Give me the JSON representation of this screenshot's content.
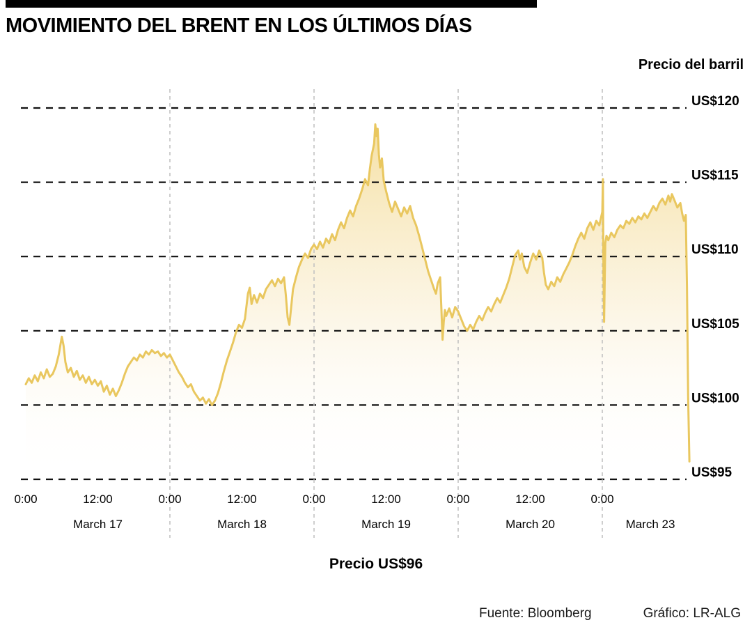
{
  "header": {
    "title": "MOVIMIENTO DEL BRENT EN LOS ÚLTIMOS DÍAS"
  },
  "footer": {
    "price_label": "Precio US$96",
    "source": "Fuente: Bloomberg",
    "credit": "Gráfico: LR-ALG"
  },
  "chart_data": {
    "type": "area",
    "title": "MOVIMIENTO DEL BRENT EN LOS ÚLTIMOS DÍAS",
    "ylabel": "Precio del barril",
    "xlabel": "",
    "unit": "US$",
    "ylim": [
      95,
      120
    ],
    "grid": "dashed",
    "line_color": "#E9C75F",
    "fill_top_color": "#F5DFA0",
    "fill_mid_color": "#FAF0D6",
    "fill_bottom_color": "#FFFFFF",
    "h_grid_color": "#111111",
    "v_grid_color": "#C2C2C2",
    "y_ticks": [
      {
        "label": "US$120",
        "value": 120
      },
      {
        "label": "US$115",
        "value": 115
      },
      {
        "label": "US$110",
        "value": 110
      },
      {
        "label": "US$105",
        "value": 105
      },
      {
        "label": "US$100",
        "value": 100
      },
      {
        "label": "US$95",
        "value": 95
      }
    ],
    "x_ticks": [
      {
        "label": "0:00",
        "hour": 0
      },
      {
        "label": "12:00",
        "hour": 12
      },
      {
        "label": "0:00",
        "hour": 24
      },
      {
        "label": "12:00",
        "hour": 36
      },
      {
        "label": "0:00",
        "hour": 48
      },
      {
        "label": "12:00",
        "hour": 60
      },
      {
        "label": "0:00",
        "hour": 72
      },
      {
        "label": "12:00",
        "hour": 84
      },
      {
        "label": "0:00",
        "hour": 96
      }
    ],
    "vgrid_hours": [
      24,
      48,
      72,
      96
    ],
    "day_labels": [
      {
        "label": "March 17",
        "hour": 12
      },
      {
        "label": "March 18",
        "hour": 36
      },
      {
        "label": "March 19",
        "hour": 60
      },
      {
        "label": "March 20",
        "hour": 84
      },
      {
        "label": "March 23",
        "hour": 104
      }
    ],
    "final_price": 96,
    "points": [
      [
        0,
        101.4
      ],
      [
        0.5,
        101.8
      ],
      [
        1,
        101.5
      ],
      [
        1.5,
        102.0
      ],
      [
        2,
        101.6
      ],
      [
        2.5,
        102.2
      ],
      [
        3,
        101.8
      ],
      [
        3.5,
        102.4
      ],
      [
        4,
        101.9
      ],
      [
        4.5,
        102.1
      ],
      [
        5,
        102.6
      ],
      [
        5.5,
        103.4
      ],
      [
        6,
        104.6
      ],
      [
        6.3,
        104.0
      ],
      [
        6.6,
        102.9
      ],
      [
        7,
        102.2
      ],
      [
        7.5,
        102.5
      ],
      [
        8,
        101.9
      ],
      [
        8.5,
        102.3
      ],
      [
        9,
        101.7
      ],
      [
        9.5,
        102.0
      ],
      [
        10,
        101.5
      ],
      [
        10.5,
        101.9
      ],
      [
        11,
        101.4
      ],
      [
        11.5,
        101.7
      ],
      [
        12,
        101.3
      ],
      [
        12.5,
        101.6
      ],
      [
        13,
        100.9
      ],
      [
        13.5,
        101.3
      ],
      [
        14,
        100.7
      ],
      [
        14.5,
        101.1
      ],
      [
        15,
        100.6
      ],
      [
        15.5,
        101.0
      ],
      [
        16,
        101.5
      ],
      [
        16.5,
        102.1
      ],
      [
        17,
        102.6
      ],
      [
        17.5,
        102.9
      ],
      [
        18,
        103.2
      ],
      [
        18.5,
        103.0
      ],
      [
        19,
        103.4
      ],
      [
        19.5,
        103.2
      ],
      [
        20,
        103.6
      ],
      [
        20.5,
        103.4
      ],
      [
        21,
        103.7
      ],
      [
        21.5,
        103.5
      ],
      [
        22,
        103.6
      ],
      [
        22.5,
        103.3
      ],
      [
        23,
        103.5
      ],
      [
        23.5,
        103.2
      ],
      [
        24,
        103.4
      ],
      [
        24.5,
        103.0
      ],
      [
        25,
        102.6
      ],
      [
        25.5,
        102.2
      ],
      [
        26,
        101.9
      ],
      [
        26.5,
        101.5
      ],
      [
        27,
        101.2
      ],
      [
        27.5,
        101.4
      ],
      [
        28,
        100.9
      ],
      [
        28.5,
        100.6
      ],
      [
        29,
        100.3
      ],
      [
        29.5,
        100.5
      ],
      [
        30,
        100.1
      ],
      [
        30.5,
        100.4
      ],
      [
        31,
        100.0
      ],
      [
        31.5,
        100.3
      ],
      [
        32,
        100.8
      ],
      [
        32.5,
        101.5
      ],
      [
        33,
        102.3
      ],
      [
        33.5,
        103.0
      ],
      [
        34,
        103.6
      ],
      [
        34.5,
        104.2
      ],
      [
        35,
        104.9
      ],
      [
        35.5,
        105.4
      ],
      [
        36,
        105.2
      ],
      [
        36.5,
        105.8
      ],
      [
        37,
        107.5
      ],
      [
        37.3,
        107.9
      ],
      [
        37.6,
        106.8
      ],
      [
        38,
        107.4
      ],
      [
        38.5,
        106.9
      ],
      [
        39,
        107.5
      ],
      [
        39.5,
        107.2
      ],
      [
        40,
        107.8
      ],
      [
        40.5,
        108.1
      ],
      [
        41,
        108.4
      ],
      [
        41.5,
        108.0
      ],
      [
        42,
        108.5
      ],
      [
        42.5,
        108.2
      ],
      [
        43,
        108.6
      ],
      [
        43.3,
        107.4
      ],
      [
        43.6,
        105.9
      ],
      [
        43.9,
        105.4
      ],
      [
        44.2,
        106.6
      ],
      [
        44.5,
        107.8
      ],
      [
        45,
        108.6
      ],
      [
        45.5,
        109.3
      ],
      [
        46,
        109.8
      ],
      [
        46.5,
        110.2
      ],
      [
        47,
        109.9
      ],
      [
        47.5,
        110.5
      ],
      [
        48,
        110.8
      ],
      [
        48.5,
        110.5
      ],
      [
        49,
        111.0
      ],
      [
        49.5,
        110.6
      ],
      [
        50,
        111.2
      ],
      [
        50.5,
        110.9
      ],
      [
        51,
        111.5
      ],
      [
        51.5,
        111.1
      ],
      [
        52,
        111.8
      ],
      [
        52.5,
        112.3
      ],
      [
        53,
        111.9
      ],
      [
        53.5,
        112.6
      ],
      [
        54,
        113.1
      ],
      [
        54.5,
        112.7
      ],
      [
        55,
        113.4
      ],
      [
        55.5,
        113.9
      ],
      [
        56,
        114.5
      ],
      [
        56.5,
        115.2
      ],
      [
        57,
        114.8
      ],
      [
        57.3,
        115.9
      ],
      [
        57.6,
        116.8
      ],
      [
        58,
        117.6
      ],
      [
        58.2,
        118.9
      ],
      [
        58.4,
        118.1
      ],
      [
        58.6,
        118.6
      ],
      [
        58.8,
        116.9
      ],
      [
        59,
        116.0
      ],
      [
        59.3,
        116.6
      ],
      [
        59.6,
        115.1
      ],
      [
        60,
        114.4
      ],
      [
        60.5,
        113.6
      ],
      [
        61,
        113.0
      ],
      [
        61.5,
        113.7
      ],
      [
        62,
        113.2
      ],
      [
        62.5,
        112.7
      ],
      [
        63,
        113.3
      ],
      [
        63.5,
        112.9
      ],
      [
        64,
        113.4
      ],
      [
        64.5,
        112.6
      ],
      [
        65,
        112.1
      ],
      [
        65.5,
        111.4
      ],
      [
        66,
        110.6
      ],
      [
        66.5,
        109.8
      ],
      [
        67,
        109.0
      ],
      [
        67.5,
        108.4
      ],
      [
        68,
        107.8
      ],
      [
        68.3,
        107.5
      ],
      [
        68.6,
        108.2
      ],
      [
        69,
        108.6
      ],
      [
        69.2,
        106.5
      ],
      [
        69.4,
        104.4
      ],
      [
        69.6,
        105.6
      ],
      [
        69.8,
        106.4
      ],
      [
        70,
        106.0
      ],
      [
        70.5,
        106.5
      ],
      [
        71,
        105.9
      ],
      [
        71.5,
        106.6
      ],
      [
        72,
        106.3
      ],
      [
        72.5,
        105.8
      ],
      [
        73,
        105.3
      ],
      [
        73.5,
        105.0
      ],
      [
        74,
        105.4
      ],
      [
        74.5,
        105.1
      ],
      [
        75,
        105.6
      ],
      [
        75.5,
        106.0
      ],
      [
        76,
        105.7
      ],
      [
        76.5,
        106.2
      ],
      [
        77,
        106.6
      ],
      [
        77.5,
        106.3
      ],
      [
        78,
        106.8
      ],
      [
        78.5,
        107.2
      ],
      [
        79,
        106.9
      ],
      [
        79.5,
        107.4
      ],
      [
        80,
        107.9
      ],
      [
        80.5,
        108.5
      ],
      [
        81,
        109.3
      ],
      [
        81.5,
        110.1
      ],
      [
        82,
        110.4
      ],
      [
        82.3,
        109.8
      ],
      [
        82.6,
        110.2
      ],
      [
        83,
        109.3
      ],
      [
        83.5,
        108.9
      ],
      [
        84,
        109.6
      ],
      [
        84.5,
        110.2
      ],
      [
        85,
        109.8
      ],
      [
        85.5,
        110.4
      ],
      [
        86,
        109.9
      ],
      [
        86.3,
        108.9
      ],
      [
        86.6,
        108.1
      ],
      [
        87,
        107.8
      ],
      [
        87.5,
        108.3
      ],
      [
        88,
        108.0
      ],
      [
        88.5,
        108.6
      ],
      [
        89,
        108.3
      ],
      [
        89.5,
        108.8
      ],
      [
        90,
        109.2
      ],
      [
        90.5,
        109.6
      ],
      [
        91,
        110.1
      ],
      [
        91.5,
        110.7
      ],
      [
        92,
        111.2
      ],
      [
        92.5,
        111.6
      ],
      [
        93,
        111.2
      ],
      [
        93.5,
        111.9
      ],
      [
        94,
        112.3
      ],
      [
        94.5,
        111.8
      ],
      [
        95,
        112.4
      ],
      [
        95.5,
        112.1
      ],
      [
        96,
        113.0
      ],
      [
        96.1,
        115.2
      ],
      [
        96.2,
        108.8
      ],
      [
        96.3,
        105.6
      ],
      [
        96.5,
        110.9
      ],
      [
        96.7,
        111.4
      ],
      [
        97,
        111.1
      ],
      [
        97.5,
        111.6
      ],
      [
        98,
        111.3
      ],
      [
        98.5,
        111.8
      ],
      [
        99,
        112.1
      ],
      [
        99.5,
        111.9
      ],
      [
        100,
        112.4
      ],
      [
        100.5,
        112.2
      ],
      [
        101,
        112.6
      ],
      [
        101.5,
        112.3
      ],
      [
        102,
        112.7
      ],
      [
        102.5,
        112.5
      ],
      [
        103,
        112.9
      ],
      [
        103.5,
        112.6
      ],
      [
        104,
        113.0
      ],
      [
        104.5,
        113.4
      ],
      [
        105,
        113.1
      ],
      [
        105.5,
        113.6
      ],
      [
        106,
        113.9
      ],
      [
        106.5,
        113.5
      ],
      [
        107,
        114.1
      ],
      [
        107.3,
        113.7
      ],
      [
        107.6,
        114.2
      ],
      [
        108,
        113.8
      ],
      [
        108.5,
        113.3
      ],
      [
        109,
        113.6
      ],
      [
        109.3,
        112.9
      ],
      [
        109.6,
        112.4
      ],
      [
        109.9,
        112.8
      ],
      [
        110.1,
        108.0
      ],
      [
        110.3,
        100.5
      ],
      [
        110.5,
        96.2
      ]
    ]
  }
}
